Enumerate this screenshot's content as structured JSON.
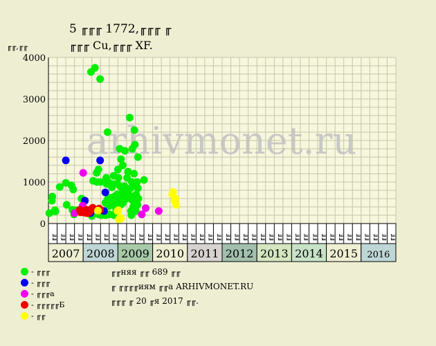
{
  "title": {
    "line1": "5 ╓╓╓ 1772,╓╓╓ ╓",
    "line2": "╓╓╓ Cu,╓╓╓ XF."
  },
  "ylabel": "╓╓,╓╓",
  "watermark": "arhivmonet.ru",
  "legend": [
    {
      "label": "- ╓╓╓",
      "color": "#00ee00"
    },
    {
      "label": "- ╓╓╓",
      "color": "#0000ee"
    },
    {
      "label": "- ╓╓╓а",
      "color": "#ee00ee"
    },
    {
      "label": "- ╓╓╓╓╓Б",
      "color": "#ee0000"
    },
    {
      "label": "- ╓╓",
      "color": "#ffff00"
    }
  ],
  "notes": [
    "╓╓няя ╓╓ 689 ╓╓",
    "╓ ╓╓╓╓иям ╓╓а ARHIVMONET.RU",
    "╓╓╓ ╓ 20 ╓я 2017 ╓╓."
  ],
  "chart_data": {
    "type": "scatter",
    "ylim": [
      0,
      4000
    ],
    "yticks": [
      0,
      1000,
      2000,
      3000,
      4000
    ],
    "grid": true,
    "years": [
      {
        "label": "2007",
        "color": "#eeefd2"
      },
      {
        "label": "2008",
        "color": "#bfd6d6"
      },
      {
        "label": "2009",
        "color": "#a7c9a7"
      },
      {
        "label": "2010",
        "color": "#eeefd2"
      },
      {
        "label": "2011",
        "color": "#d6d3d0"
      },
      {
        "label": "2012",
        "color": "#a2bfae"
      },
      {
        "label": "2013",
        "color": "#d3e6bf"
      },
      {
        "label": "2014",
        "color": "#c7e3c7"
      },
      {
        "label": "2015",
        "color": "#eeefd2"
      },
      {
        "label": "2016",
        "color": "#bfd6d6"
      }
    ],
    "months_per_year": 4,
    "month_labels": [
      "╓╓",
      "╓╓",
      "╓╓",
      "╓╓"
    ],
    "series": [
      {
        "color": "#00ee00",
        "points": [
          [
            0.1,
            250
          ],
          [
            0.4,
            550
          ],
          [
            0.45,
            650
          ],
          [
            0.75,
            320
          ],
          [
            0.8,
            290
          ],
          [
            1.3,
            880
          ],
          [
            2.0,
            980
          ],
          [
            2.1,
            450
          ],
          [
            2.65,
            920
          ],
          [
            2.75,
            330
          ],
          [
            2.85,
            820
          ],
          [
            2.95,
            220
          ],
          [
            3.2,
            320
          ],
          [
            3.8,
            600
          ],
          [
            4.9,
            3650
          ],
          [
            5.0,
            180
          ],
          [
            5.15,
            1030
          ],
          [
            5.35,
            3750
          ],
          [
            5.55,
            1220
          ],
          [
            5.6,
            1000
          ],
          [
            5.75,
            1300
          ],
          [
            5.8,
            220
          ],
          [
            5.95,
            3480
          ],
          [
            6.0,
            1000
          ],
          [
            6.05,
            200
          ],
          [
            6.35,
            250
          ],
          [
            6.55,
            500
          ],
          [
            6.6,
            200
          ],
          [
            6.65,
            1100
          ],
          [
            6.7,
            950
          ],
          [
            6.8,
            2200
          ],
          [
            6.85,
            600
          ],
          [
            6.9,
            1000
          ],
          [
            6.95,
            420
          ],
          [
            7.0,
            220
          ],
          [
            7.1,
            540
          ],
          [
            7.2,
            620
          ],
          [
            7.25,
            480
          ],
          [
            7.3,
            870
          ],
          [
            7.35,
            500
          ],
          [
            7.45,
            950
          ],
          [
            7.5,
            1150
          ],
          [
            7.55,
            200
          ],
          [
            7.6,
            650
          ],
          [
            7.7,
            400
          ],
          [
            7.8,
            300
          ],
          [
            7.9,
            700
          ],
          [
            7.95,
            950
          ],
          [
            8.0,
            1300
          ],
          [
            8.05,
            1100
          ],
          [
            8.1,
            620
          ],
          [
            8.15,
            520
          ],
          [
            8.2,
            1800
          ],
          [
            8.25,
            900
          ],
          [
            8.3,
            450
          ],
          [
            8.35,
            1550
          ],
          [
            8.4,
            700
          ],
          [
            8.45,
            850
          ],
          [
            8.5,
            600
          ],
          [
            8.55,
            1400
          ],
          [
            8.6,
            500
          ],
          [
            8.65,
            700
          ],
          [
            8.7,
            800
          ],
          [
            8.75,
            900
          ],
          [
            8.8,
            1750
          ],
          [
            8.85,
            850
          ],
          [
            8.9,
            650
          ],
          [
            9.0,
            600
          ],
          [
            9.05,
            1100
          ],
          [
            9.1,
            750
          ],
          [
            9.15,
            1250
          ],
          [
            9.2,
            820
          ],
          [
            9.25,
            700
          ],
          [
            9.35,
            2550
          ],
          [
            9.45,
            850
          ],
          [
            9.5,
            300
          ],
          [
            9.55,
            200
          ],
          [
            9.6,
            1000
          ],
          [
            9.65,
            1800
          ],
          [
            9.7,
            550
          ],
          [
            9.75,
            400
          ],
          [
            9.8,
            650
          ],
          [
            9.85,
            1200
          ],
          [
            9.9,
            2250
          ],
          [
            9.95,
            1900
          ],
          [
            10.0,
            950
          ],
          [
            10.05,
            300
          ],
          [
            10.1,
            700
          ],
          [
            10.15,
            550
          ],
          [
            10.2,
            1000
          ],
          [
            10.3,
            1600
          ],
          [
            10.25,
            450
          ],
          [
            10.35,
            600
          ],
          [
            10.3,
            850
          ],
          [
            11.0,
            1050
          ]
        ]
      },
      {
        "color": "#0000ee",
        "points": [
          [
            2.0,
            1520
          ],
          [
            4.2,
            550
          ],
          [
            4.85,
            250
          ],
          [
            5.95,
            1520
          ],
          [
            6.4,
            300
          ],
          [
            6.55,
            750
          ]
        ]
      },
      {
        "color": "#ee00ee",
        "points": [
          [
            3.0,
            250
          ],
          [
            4.0,
            1220
          ],
          [
            3.95,
            430
          ],
          [
            4.25,
            280
          ],
          [
            4.5,
            270
          ],
          [
            10.75,
            220
          ],
          [
            11.2,
            370
          ],
          [
            12.7,
            300
          ]
        ]
      },
      {
        "color": "#ee0000",
        "points": [
          [
            3.6,
            330
          ],
          [
            3.7,
            270
          ],
          [
            4.15,
            260
          ],
          [
            4.35,
            330
          ],
          [
            4.45,
            250
          ],
          [
            4.55,
            300
          ],
          [
            4.75,
            280
          ],
          [
            4.95,
            350
          ],
          [
            5.1,
            380
          ],
          [
            5.85,
            360
          ],
          [
            5.95,
            330
          ]
        ]
      },
      {
        "color": "#ffff00",
        "points": [
          [
            5.7,
            310
          ],
          [
            7.95,
            300
          ],
          [
            8.05,
            320
          ],
          [
            8.1,
            100
          ],
          [
            8.25,
            140
          ],
          [
            8.35,
            120
          ],
          [
            14.25,
            700
          ],
          [
            14.35,
            760
          ],
          [
            14.5,
            550
          ],
          [
            14.65,
            600
          ],
          [
            14.7,
            450
          ]
        ]
      }
    ]
  }
}
